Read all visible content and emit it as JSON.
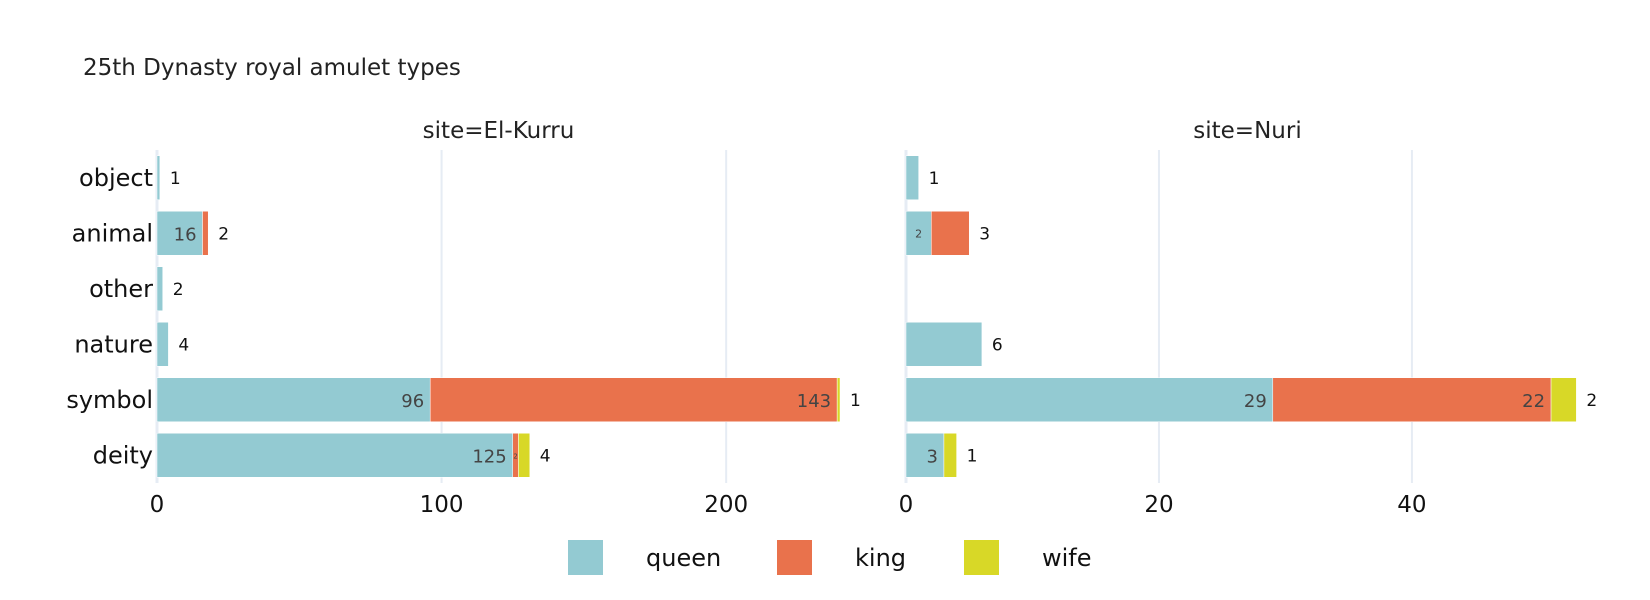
{
  "chart_data": {
    "type": "bar",
    "orientation": "horizontal",
    "barmode": "stack",
    "title": "25th Dynasty royal amulet types",
    "categories": [
      "object",
      "animal",
      "other",
      "nature",
      "symbol",
      "deity"
    ],
    "series_colors": {
      "queen": "#93cad2",
      "king": "#e9724c",
      "wife": "#d8d827"
    },
    "legend": {
      "position": "bottom-center",
      "items": [
        "queen",
        "king",
        "wife"
      ]
    },
    "grid": true,
    "facets": [
      {
        "title": "site=El-Kurru",
        "xlim": [
          0,
          240
        ],
        "xticks": [
          0,
          100,
          200
        ],
        "series": [
          {
            "name": "queen",
            "values": [
              1,
              16,
              2,
              4,
              96,
              125
            ]
          },
          {
            "name": "king",
            "values": [
              0,
              2,
              0,
              0,
              143,
              2
            ]
          },
          {
            "name": "wife",
            "values": [
              0,
              0,
              0,
              0,
              1,
              4
            ]
          }
        ],
        "bar_labels": [
          {
            "category": "object",
            "series": "queen",
            "text": "1",
            "position": "outside"
          },
          {
            "category": "animal",
            "series": "queen",
            "text": "16",
            "position": "inside"
          },
          {
            "category": "animal",
            "series": "king",
            "text": "2",
            "position": "outside"
          },
          {
            "category": "other",
            "series": "queen",
            "text": "2",
            "position": "outside"
          },
          {
            "category": "nature",
            "series": "queen",
            "text": "4",
            "position": "outside"
          },
          {
            "category": "symbol",
            "series": "queen",
            "text": "96",
            "position": "inside"
          },
          {
            "category": "symbol",
            "series": "king",
            "text": "143",
            "position": "inside"
          },
          {
            "category": "symbol",
            "series": "wife",
            "text": "1",
            "position": "outside"
          },
          {
            "category": "deity",
            "series": "queen",
            "text": "125",
            "position": "inside"
          },
          {
            "category": "deity",
            "series": "king",
            "text": "2",
            "position": "inside-tiny"
          },
          {
            "category": "deity",
            "series": "wife",
            "text": "4",
            "position": "outside"
          }
        ]
      },
      {
        "title": "site=Nuri",
        "xlim": [
          0,
          54
        ],
        "xticks": [
          0,
          20,
          40
        ],
        "series": [
          {
            "name": "queen",
            "values": [
              1,
              2,
              0,
              6,
              29,
              3
            ]
          },
          {
            "name": "king",
            "values": [
              0,
              3,
              0,
              0,
              22,
              0
            ]
          },
          {
            "name": "wife",
            "values": [
              0,
              0,
              0,
              0,
              2,
              1
            ]
          }
        ],
        "bar_labels": [
          {
            "category": "object",
            "series": "queen",
            "text": "1",
            "position": "outside"
          },
          {
            "category": "animal",
            "series": "queen",
            "text": "2",
            "position": "inside-small"
          },
          {
            "category": "animal",
            "series": "king",
            "text": "3",
            "position": "outside"
          },
          {
            "category": "nature",
            "series": "queen",
            "text": "6",
            "position": "outside"
          },
          {
            "category": "symbol",
            "series": "queen",
            "text": "29",
            "position": "inside"
          },
          {
            "category": "symbol",
            "series": "king",
            "text": "22",
            "position": "inside"
          },
          {
            "category": "symbol",
            "series": "wife",
            "text": "2",
            "position": "outside"
          },
          {
            "category": "deity",
            "series": "queen",
            "text": "3",
            "position": "inside"
          },
          {
            "category": "deity",
            "series": "wife",
            "text": "1",
            "position": "outside"
          }
        ]
      }
    ]
  }
}
